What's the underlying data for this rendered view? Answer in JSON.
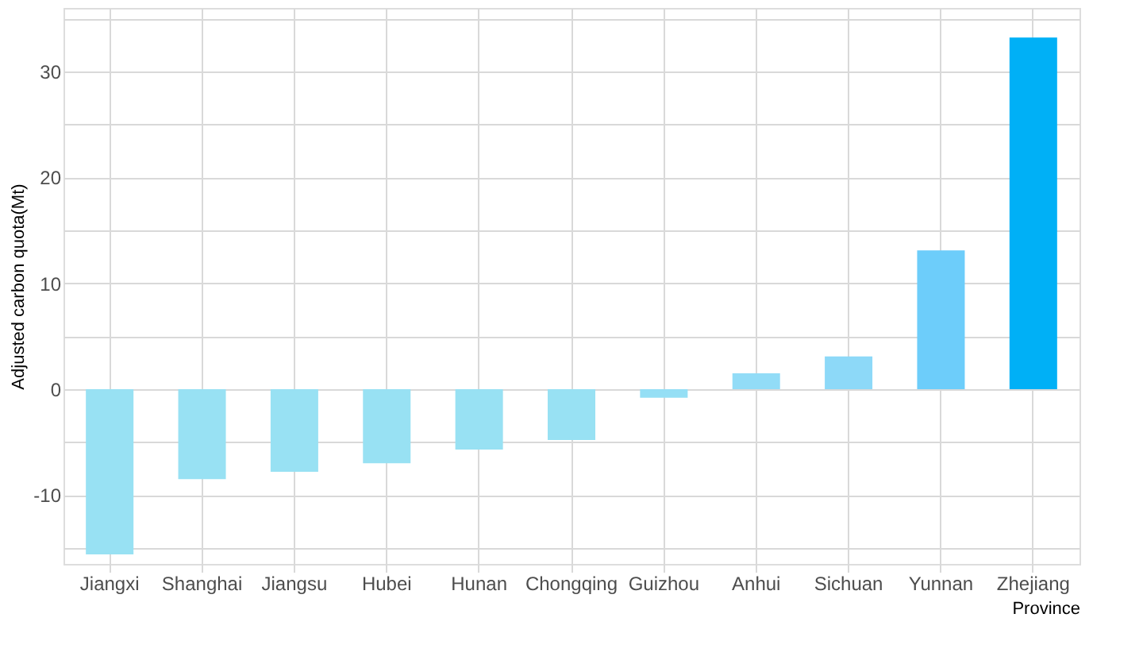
{
  "chart_data": {
    "type": "bar",
    "xlabel": "Province",
    "ylabel": "Adjusted carbon quota(Mt)",
    "categories": [
      "Jiangxi",
      "Shanghai",
      "Jiangsu",
      "Hubei",
      "Hunan",
      "Chongqing",
      "Guizhou",
      "Anhui",
      "Sichuan",
      "Yunnan",
      "Zhejiang"
    ],
    "values": [
      -15.6,
      -8.5,
      -7.8,
      -7.0,
      -5.7,
      -4.8,
      -0.8,
      1.5,
      3.1,
      13.1,
      33.2
    ],
    "colors": [
      "#98e1f3",
      "#98e1f3",
      "#98e1f3",
      "#98e1f3",
      "#98e1f3",
      "#98e1f3",
      "#95dff5",
      "#92dcf7",
      "#8dd9f8",
      "#6dcdfa",
      "#00b0f6"
    ],
    "ylim": [
      -16.5,
      36
    ],
    "yticks": [
      {
        "value": -15,
        "label": null
      },
      -10,
      {
        "value": -5,
        "label": null
      },
      0,
      {
        "value": 5,
        "label": null
      },
      10,
      {
        "value": 15,
        "label": null
      },
      20,
      {
        "value": 25,
        "label": null
      },
      30,
      {
        "value": 35,
        "label": null
      }
    ],
    "grid": true
  }
}
